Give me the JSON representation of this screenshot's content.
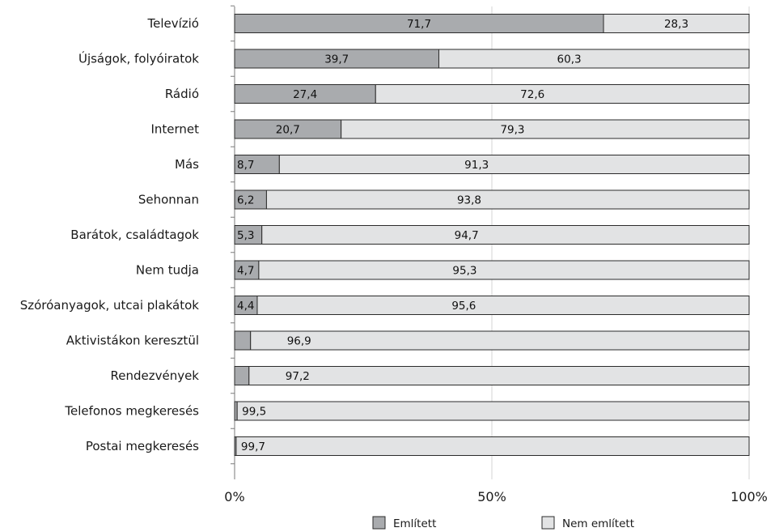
{
  "chart_data": {
    "type": "bar",
    "orientation": "horizontal",
    "stacked": true,
    "categories": [
      "Televízió",
      "Újságok, folyóiratok",
      "Rádió",
      "Internet",
      "Más",
      "Sehonnan",
      "Barátok, családtagok",
      "Nem tudja",
      "Szóróanyagok, utcai plakátok",
      "Aktivistákon keresztül",
      "Rendezvények",
      "Telefonos megkeresés",
      "Postai megkeresés"
    ],
    "series": [
      {
        "name": "Említett",
        "color": "#a9abae",
        "values": [
          71.7,
          39.7,
          27.4,
          20.7,
          8.7,
          6.2,
          5.3,
          4.7,
          4.4,
          3.1,
          2.8,
          0.5,
          0.3
        ],
        "labels": [
          "71,7",
          "39,7",
          "27,4",
          "20,7",
          "8,7",
          "6,2",
          "5,3",
          "4,7",
          "4,4",
          "",
          "",
          "",
          ""
        ]
      },
      {
        "name": "Nem említett",
        "color": "#e2e3e4",
        "values": [
          28.3,
          60.3,
          72.6,
          79.3,
          91.3,
          93.8,
          94.7,
          95.3,
          95.6,
          96.9,
          97.2,
          99.5,
          99.7
        ],
        "labels": [
          "28,3",
          "60,3",
          "72,6",
          "79,3",
          "91,3",
          "93,8",
          "94,7",
          "95,3",
          "95,6",
          "96,9",
          "97,2",
          "99,5",
          "99,7"
        ]
      }
    ],
    "xlim": [
      0,
      100
    ],
    "xticks": [
      "0%",
      "50%",
      "100%"
    ],
    "grid": true,
    "legend": "bottom-center"
  }
}
